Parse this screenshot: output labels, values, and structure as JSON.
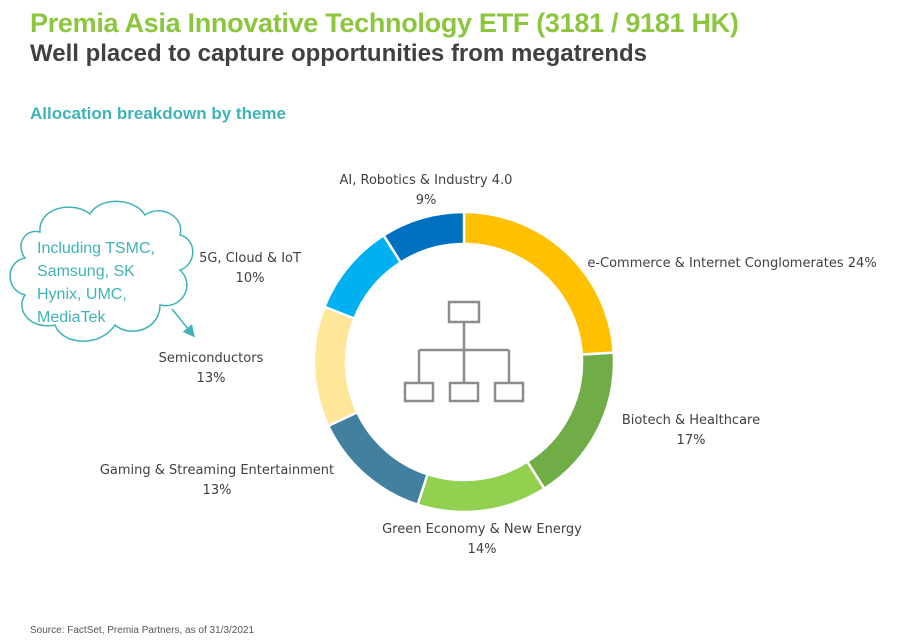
{
  "header": {
    "title": "Premia Asia Innovative Technology ETF  (3181 / 9181 HK)",
    "subtitle": "Well placed to capture opportunities from megatrends",
    "section": "Allocation breakdown by theme"
  },
  "callout": {
    "text": "Including TSMC, Samsung, SK Hynix, UMC, MediaTek"
  },
  "footer": {
    "source": "Source: FactSet, Premia Partners, as of 31/3/2021"
  },
  "chart_data": {
    "type": "pie",
    "style": "donut",
    "title": "",
    "categories": [
      "e-Commerce & Internet Conglomerates",
      "Biotech & Healthcare",
      "Green Economy & New Energy",
      "Gaming & Streaming Entertainment",
      "Semiconductors",
      "5G, Cloud & IoT",
      "AI, Robotics & Industry 4.0"
    ],
    "values": [
      24,
      17,
      14,
      13,
      13,
      10,
      9
    ],
    "value_labels": [
      "24%",
      "17%",
      "14%",
      "13%",
      "13%",
      "10%",
      "9%"
    ],
    "colors": [
      "#ffc000",
      "#70ad47",
      "#92d050",
      "#41809f",
      "#ffe699",
      "#00b0f0",
      "#0070c0"
    ],
    "center_icon": "org-chart-icon"
  }
}
